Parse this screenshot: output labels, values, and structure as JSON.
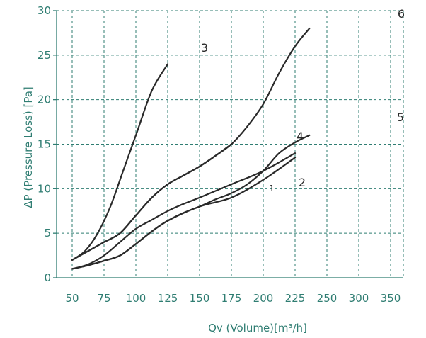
{
  "chart_data": {
    "type": "line",
    "xlabel": "Qv (Volume)[m³/h]",
    "ylabel": "ΔP (Pressure Loss) [Pa]",
    "x_tick_labels": [
      "50",
      "75",
      "100",
      "125",
      "150",
      "175",
      "200",
      "225",
      "250",
      "300",
      "350"
    ],
    "y_ticks": [
      0,
      5,
      10,
      15,
      20,
      25,
      30
    ],
    "ylim": [
      0,
      30
    ],
    "grid": true,
    "grid_style": "dashed",
    "colors": {
      "axis": "#2f7d72",
      "grid": "#2f7d72",
      "series": "#2a2a2a"
    },
    "series": [
      {
        "name": "1",
        "points": [
          [
            0,
            1
          ],
          [
            0.5,
            1.5
          ],
          [
            1,
            2.5
          ],
          [
            1.5,
            4
          ],
          [
            2,
            5.5
          ],
          [
            2.5,
            6.5
          ],
          [
            3,
            7.5
          ],
          [
            3.5,
            8.3
          ],
          [
            4,
            9
          ],
          [
            5,
            10.5
          ],
          [
            6,
            12
          ],
          [
            7,
            14
          ]
        ]
      },
      {
        "name": "2",
        "points": [
          [
            0,
            1
          ],
          [
            0.5,
            1.4
          ],
          [
            1,
            1.9
          ],
          [
            1.5,
            2.5
          ],
          [
            2,
            3.8
          ],
          [
            2.5,
            5.2
          ],
          [
            3,
            6.4
          ],
          [
            4,
            8
          ],
          [
            5,
            9
          ],
          [
            6,
            11
          ],
          [
            7,
            13.5
          ]
        ]
      },
      {
        "name": "3",
        "points": [
          [
            0,
            2
          ],
          [
            0.4,
            3
          ],
          [
            0.8,
            5
          ],
          [
            1.2,
            8
          ],
          [
            1.6,
            12
          ],
          [
            2,
            16
          ],
          [
            2.5,
            21
          ],
          [
            3,
            24
          ]
        ]
      },
      {
        "name": "4",
        "points": [
          [
            0,
            2
          ],
          [
            0.5,
            3
          ],
          [
            1,
            4
          ],
          [
            1.5,
            5
          ],
          [
            2,
            7
          ],
          [
            2.5,
            9
          ],
          [
            3,
            10.5
          ],
          [
            3.5,
            11.5
          ],
          [
            4,
            12.5
          ],
          [
            4.5,
            13.7
          ],
          [
            5,
            15
          ]
        ]
      },
      {
        "name": "5",
        "points": [
          [
            0,
            1
          ],
          [
            0.5,
            1.4
          ],
          [
            1,
            1.9
          ],
          [
            1.5,
            2.5
          ],
          [
            2,
            3.8
          ],
          [
            2.5,
            5.2
          ],
          [
            3,
            6.4
          ],
          [
            3.5,
            7.3
          ],
          [
            4,
            8
          ],
          [
            4.5,
            8.8
          ],
          [
            5,
            9.5
          ],
          [
            5.5,
            10.5
          ],
          [
            6,
            12
          ],
          [
            6.5,
            14
          ],
          [
            7,
            15.2
          ],
          [
            7.45,
            16
          ]
        ]
      },
      {
        "name": "6",
        "points": [
          [
            0,
            2
          ],
          [
            0.5,
            3
          ],
          [
            1,
            4
          ],
          [
            1.5,
            5
          ],
          [
            2,
            7
          ],
          [
            2.5,
            9
          ],
          [
            3,
            10.5
          ],
          [
            3.5,
            11.5
          ],
          [
            4,
            12.5
          ],
          [
            4.5,
            13.7
          ],
          [
            5,
            15
          ],
          [
            5.5,
            17
          ],
          [
            6,
            19.5
          ],
          [
            6.5,
            23
          ],
          [
            7,
            26
          ],
          [
            7.45,
            28
          ]
        ]
      }
    ]
  }
}
